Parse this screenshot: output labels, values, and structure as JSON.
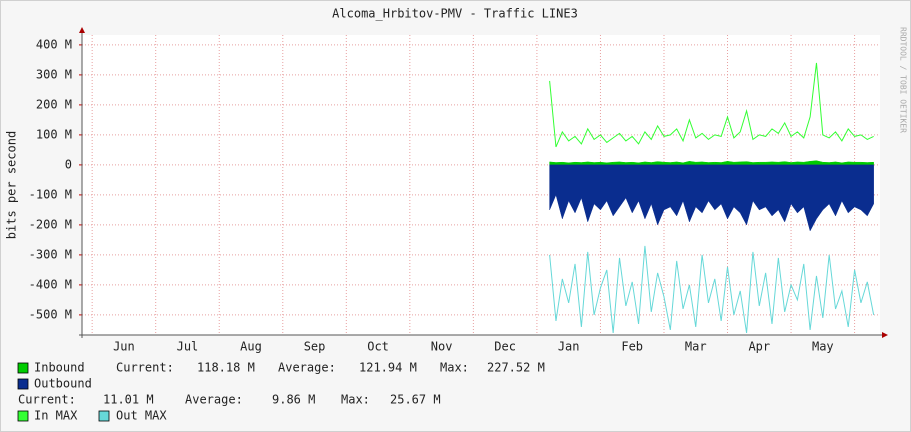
{
  "chart_data": {
    "type": "area",
    "title": "Alcoma_Hrbitov-PMV - Traffic LINE3",
    "y_label": "bits per second",
    "watermark": "RRDTOOL / TOBI OETIKER",
    "categories": [
      "Jun",
      "Jul",
      "Aug",
      "Sep",
      "Oct",
      "Nov",
      "Dec",
      "Jan",
      "Feb",
      "Mar",
      "Apr",
      "May"
    ],
    "xlim": [
      -0.16,
      12.4
    ],
    "x": [
      7.2,
      7.3,
      7.4,
      7.5,
      7.6,
      7.7,
      7.8,
      7.9,
      8.0,
      8.1,
      8.2,
      8.3,
      8.4,
      8.5,
      8.6,
      8.7,
      8.8,
      8.9,
      9.0,
      9.1,
      9.2,
      9.3,
      9.4,
      9.5,
      9.6,
      9.7,
      9.8,
      9.9,
      10.0,
      10.1,
      10.2,
      10.3,
      10.4,
      10.5,
      10.6,
      10.7,
      10.8,
      10.9,
      11.0,
      11.1,
      11.2,
      11.3,
      11.4,
      11.5,
      11.6,
      11.7,
      11.8,
      11.9,
      12.0,
      12.1,
      12.2,
      12.3
    ],
    "ylim": [
      -567,
      433
    ],
    "yticks": [
      {
        "value": 400,
        "label": "400 M"
      },
      {
        "value": 300,
        "label": "300 M"
      },
      {
        "value": 200,
        "label": "200 M"
      },
      {
        "value": 100,
        "label": "100 M"
      },
      0,
      {
        "value": -100,
        "label": "-100 M"
      },
      {
        "value": -200,
        "label": "-200 M"
      },
      {
        "value": -300,
        "label": "-300 M"
      },
      {
        "value": -400,
        "label": "-400 M"
      },
      {
        "value": -500,
        "label": "-500 M"
      }
    ],
    "grid": true,
    "series": [
      {
        "name": "Inbound",
        "color": "#00cc00",
        "kind": "area",
        "values": [
          10,
          8,
          9,
          7,
          9,
          8,
          10,
          8,
          9,
          7,
          9,
          10,
          8,
          9,
          7,
          10,
          8,
          11,
          9,
          8,
          10,
          7,
          12,
          9,
          10,
          8,
          9,
          8,
          12,
          9,
          10,
          11,
          8,
          9,
          9,
          10,
          9,
          11,
          8,
          10,
          9,
          12,
          14,
          9,
          8,
          10,
          7,
          10,
          9,
          9,
          8,
          9
        ]
      },
      {
        "name": "Outbound",
        "color": "#0a2d8f",
        "kind": "area",
        "values": [
          -150,
          -100,
          -180,
          -120,
          -160,
          -110,
          -190,
          -130,
          -150,
          -120,
          -170,
          -140,
          -110,
          -160,
          -120,
          -180,
          -130,
          -200,
          -150,
          -140,
          -170,
          -120,
          -190,
          -140,
          -160,
          -120,
          -150,
          -130,
          -180,
          -140,
          -160,
          -200,
          -120,
          -150,
          -140,
          -170,
          -150,
          -190,
          -130,
          -160,
          -140,
          -220,
          -180,
          -150,
          -130,
          -170,
          -120,
          -160,
          -140,
          -150,
          -170,
          -130
        ]
      },
      {
        "name": "In MAX",
        "color": "#33ff33",
        "kind": "line",
        "values": [
          280,
          60,
          110,
          80,
          95,
          70,
          120,
          85,
          100,
          75,
          90,
          105,
          80,
          95,
          70,
          110,
          85,
          130,
          95,
          100,
          120,
          80,
          150,
          90,
          105,
          85,
          100,
          95,
          160,
          90,
          110,
          180,
          85,
          100,
          95,
          120,
          105,
          140,
          95,
          110,
          90,
          160,
          340,
          100,
          90,
          110,
          80,
          120,
          95,
          100,
          85,
          95
        ]
      },
      {
        "name": "Out MAX",
        "color": "#66d8d8",
        "kind": "line",
        "values": [
          -300,
          -520,
          -380,
          -460,
          -330,
          -540,
          -290,
          -500,
          -410,
          -350,
          -560,
          -310,
          -470,
          -390,
          -530,
          -270,
          -490,
          -360,
          -440,
          -550,
          -320,
          -480,
          -400,
          -540,
          -300,
          -460,
          -380,
          -520,
          -340,
          -500,
          -420,
          -560,
          -290,
          -470,
          -360,
          -530,
          -310,
          -490,
          -400,
          -450,
          -330,
          -550,
          -370,
          -510,
          -300,
          -480,
          -420,
          -540,
          -350,
          -460,
          -390,
          -500
        ]
      }
    ],
    "stats": [
      [
        "Current:",
        "118.18 M",
        "Average:",
        "121.94 M",
        "Max:",
        "227.52 M"
      ],
      [
        "Current:",
        "11.01 M",
        "Average:",
        "9.86 M",
        "Max:",
        "25.67 M"
      ]
    ]
  }
}
